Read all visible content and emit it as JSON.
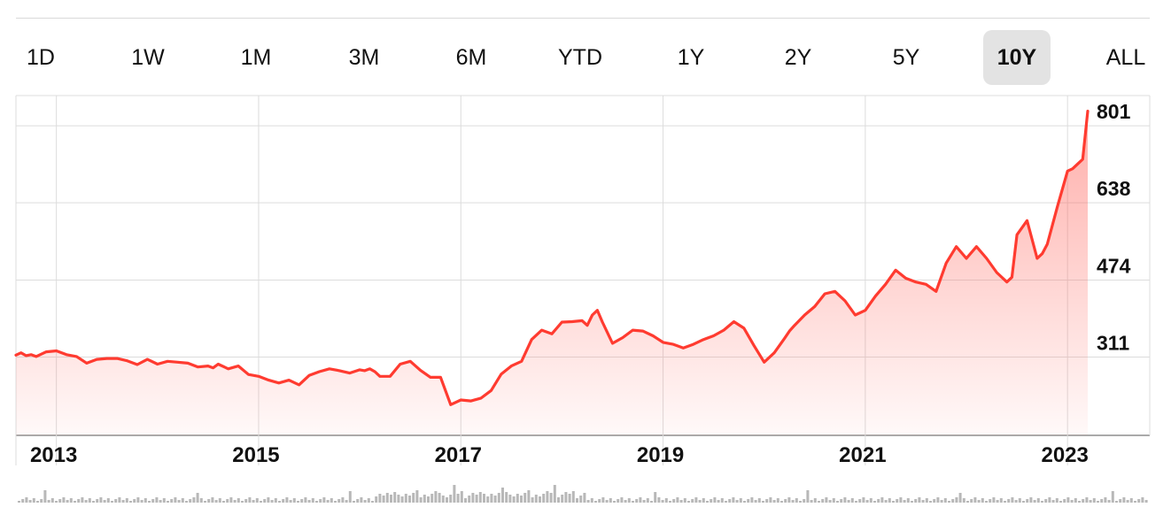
{
  "ranges": [
    {
      "label": "1D",
      "selected": false
    },
    {
      "label": "1W",
      "selected": false
    },
    {
      "label": "1M",
      "selected": false
    },
    {
      "label": "3M",
      "selected": false
    },
    {
      "label": "6M",
      "selected": false
    },
    {
      "label": "YTD",
      "selected": false
    },
    {
      "label": "1Y",
      "selected": false
    },
    {
      "label": "2Y",
      "selected": false
    },
    {
      "label": "5Y",
      "selected": false
    },
    {
      "label": "10Y",
      "selected": true
    },
    {
      "label": "ALL",
      "selected": false
    }
  ],
  "colors": {
    "line": "#ff3b30",
    "fill_top": "#ff6b63",
    "grid": "#dcdcdc",
    "volume": "#b8b8b8",
    "selected_bg": "#e3e3e3"
  },
  "chart_data": {
    "type": "area",
    "grid": true,
    "xlim": [
      2012.6,
      2023.2
    ],
    "ylim": [
      145,
      865
    ],
    "y_ticks": [
      311,
      474,
      638,
      801
    ],
    "x_ticks": [
      {
        "value": 2013,
        "label": "2013"
      },
      {
        "value": 2015,
        "label": "2015"
      },
      {
        "value": 2017,
        "label": "2017"
      },
      {
        "value": 2019,
        "label": "2019"
      },
      {
        "value": 2021,
        "label": "2021"
      },
      {
        "value": 2023,
        "label": "2023"
      }
    ],
    "series": [
      {
        "x": [
          2012.6,
          2012.65,
          2012.7,
          2012.75,
          2012.8,
          2012.9,
          2013.0,
          2013.1,
          2013.2,
          2013.3,
          2013.4,
          2013.5,
          2013.6,
          2013.7,
          2013.8,
          2013.9,
          2014.0,
          2014.1,
          2014.2,
          2014.3,
          2014.4,
          2014.5,
          2014.55,
          2014.6,
          2014.7,
          2014.8,
          2014.9,
          2015.0,
          2015.1,
          2015.2,
          2015.3,
          2015.4,
          2015.5,
          2015.6,
          2015.7,
          2015.8,
          2015.9,
          2016.0,
          2016.05,
          2016.1,
          2016.15,
          2016.2,
          2016.3,
          2016.4,
          2016.5,
          2016.6,
          2016.7,
          2016.8,
          2016.9,
          2017.0,
          2017.1,
          2017.2,
          2017.3,
          2017.4,
          2017.5,
          2017.6,
          2017.7,
          2017.8,
          2017.9,
          2018.0,
          2018.1,
          2018.2,
          2018.25,
          2018.3,
          2018.35,
          2018.4,
          2018.5,
          2018.6,
          2018.7,
          2018.8,
          2018.9,
          2019.0,
          2019.1,
          2019.2,
          2019.3,
          2019.4,
          2019.5,
          2019.6,
          2019.7,
          2019.8,
          2019.9,
          2020.0,
          2020.1,
          2020.2,
          2020.25,
          2020.3,
          2020.4,
          2020.5,
          2020.6,
          2020.7,
          2020.8,
          2020.9,
          2021.0,
          2021.1,
          2021.2,
          2021.3,
          2021.4,
          2021.5,
          2021.6,
          2021.7,
          2021.8,
          2021.9,
          2022.0,
          2022.1,
          2022.2,
          2022.3,
          2022.4,
          2022.45,
          2022.5,
          2022.6,
          2022.7,
          2022.75,
          2022.8,
          2022.9,
          2023.0,
          2023.05,
          2023.1,
          2023.15,
          2023.2
        ],
        "values": [
          315,
          320,
          314,
          316,
          312,
          322,
          324,
          316,
          312,
          298,
          306,
          308,
          308,
          303,
          295,
          306,
          296,
          302,
          300,
          298,
          290,
          292,
          288,
          296,
          286,
          292,
          274,
          270,
          262,
          256,
          262,
          252,
          272,
          280,
          286,
          282,
          277,
          284,
          282,
          286,
          280,
          270,
          270,
          296,
          302,
          283,
          268,
          268,
          210,
          220,
          218,
          224,
          240,
          275,
          292,
          302,
          348,
          368,
          360,
          385,
          386,
          388,
          378,
          400,
          410,
          385,
          340,
          352,
          368,
          366,
          356,
          342,
          338,
          330,
          338,
          348,
          356,
          368,
          386,
          372,
          335,
          300,
          320,
          350,
          366,
          378,
          400,
          418,
          445,
          450,
          430,
          400,
          410,
          440,
          465,
          495,
          478,
          470,
          465,
          450,
          510,
          545,
          520,
          545,
          520,
          490,
          470,
          480,
          570,
          600,
          520,
          530,
          550,
          630,
          705,
          710,
          720,
          730,
          832
        ]
      }
    ]
  }
}
